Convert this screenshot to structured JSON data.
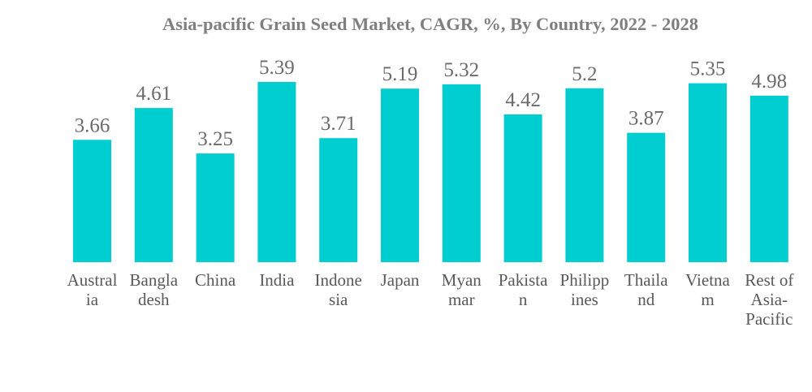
{
  "chart_data": {
    "type": "bar",
    "title": "Asia-pacific Grain Seed Market, CAGR, %, By Country, 2022 - 2028",
    "xlabel": "",
    "ylabel": "",
    "categories": [
      "Australia",
      "Bangladesh",
      "China",
      "India",
      "Indonesia",
      "Japan",
      "Myanmar",
      "Pakistan",
      "Philippines",
      "Thailand",
      "Vietnam",
      "Rest of Asia-Pacific"
    ],
    "category_label_lines": [
      [
        "Austral",
        "ia"
      ],
      [
        "Bangla",
        "desh"
      ],
      [
        "China"
      ],
      [
        "India"
      ],
      [
        "Indone",
        "sia"
      ],
      [
        "Japan"
      ],
      [
        "Myan",
        "mar"
      ],
      [
        "Pakista",
        "n"
      ],
      [
        "Philipp",
        "ines"
      ],
      [
        "Thaila",
        "nd"
      ],
      [
        "Vietna",
        "m"
      ],
      [
        "Rest of",
        "Asia-",
        "Pacific"
      ]
    ],
    "values": [
      3.66,
      4.61,
      3.25,
      5.39,
      3.71,
      5.19,
      5.32,
      4.42,
      5.2,
      3.87,
      5.35,
      4.98
    ],
    "value_labels": [
      "3.66",
      "4.61",
      "3.25",
      "5.39",
      "3.71",
      "5.19",
      "5.32",
      "4.42",
      "5.2",
      "3.87",
      "5.35",
      "4.98"
    ],
    "ylim": [
      0,
      5.39
    ],
    "grid": false,
    "legend": "none",
    "bar_color": "#00cdd0"
  }
}
